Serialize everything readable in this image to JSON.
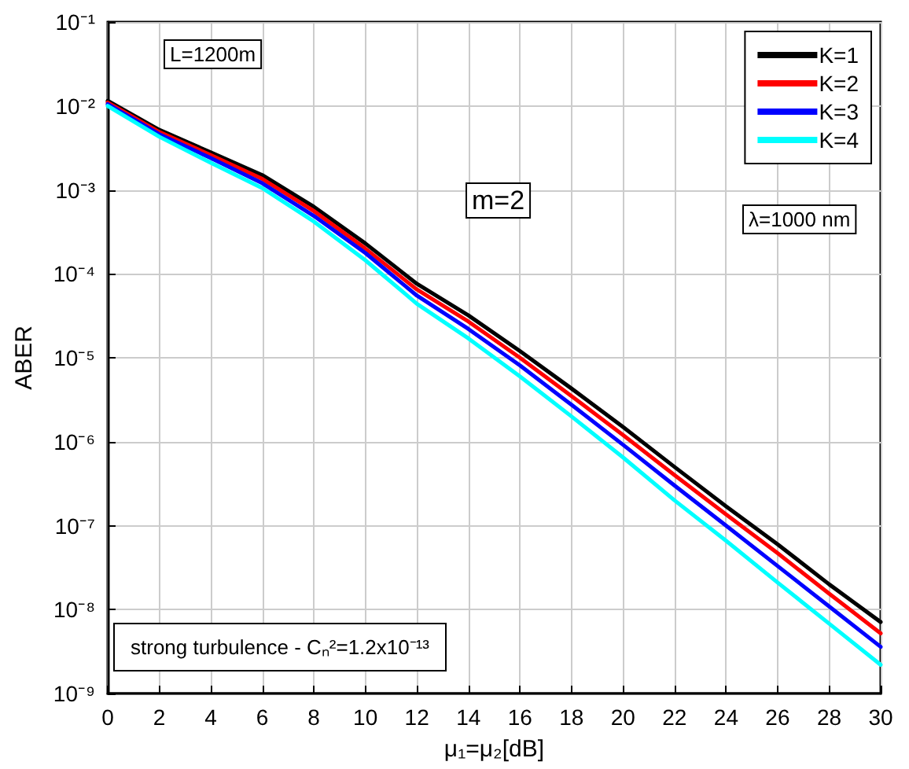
{
  "chart_data": {
    "type": "line",
    "xlabel": "μ₁=μ₂[dB]",
    "ylabel": "ABER",
    "annotations": [
      "L=1200m",
      "m=2",
      "λ=1000 nm",
      "strong turbulence - Cₙ²=1.2x10⁻¹³"
    ],
    "x": [
      0,
      2,
      4,
      6,
      8,
      10,
      12,
      14,
      16,
      18,
      20,
      22,
      24,
      26,
      28,
      30
    ],
    "series": [
      {
        "name": "K=1",
        "color": "#000000",
        "values": [
          0.0115,
          0.0052,
          0.0028,
          0.0015,
          0.00063,
          0.00023,
          7.6e-05,
          3.2e-05,
          1.2e-05,
          4.3e-06,
          1.5e-06,
          5e-07,
          1.7e-07,
          6e-08,
          2e-08,
          7.1e-09
        ]
      },
      {
        "name": "K=2",
        "color": "#ff0000",
        "values": [
          0.011,
          0.0049,
          0.0026,
          0.00135,
          0.00056,
          0.0002,
          6.5e-05,
          2.7e-05,
          1e-05,
          3.5e-06,
          1.2e-06,
          4e-07,
          1.36e-07,
          4.7e-08,
          1.55e-08,
          5.2e-09
        ]
      },
      {
        "name": "K=3",
        "color": "#0000ff",
        "values": [
          0.0105,
          0.0046,
          0.0024,
          0.0012,
          0.00049,
          0.000177,
          5.5e-05,
          2.2e-05,
          8.1e-06,
          2.75e-06,
          9.2e-07,
          3e-07,
          1e-07,
          3.3e-08,
          1.09e-08,
          3.6e-09
        ]
      },
      {
        "name": "K=4",
        "color": "#00ffff",
        "values": [
          0.01,
          0.0043,
          0.0021,
          0.00105,
          0.00042,
          0.000145,
          4.4e-05,
          1.7e-05,
          6e-06,
          2e-06,
          6.5e-07,
          2e-07,
          6.6e-08,
          2.1e-08,
          6.8e-09,
          2.2e-09
        ]
      }
    ],
    "xlim": [
      0,
      30
    ],
    "xticks": [
      0,
      2,
      4,
      6,
      8,
      10,
      12,
      14,
      16,
      18,
      20,
      22,
      24,
      26,
      28,
      30
    ],
    "ylim": [
      1e-09,
      0.1
    ],
    "yticks": [
      {
        "value": 1e-09,
        "label": "10⁻⁹"
      },
      {
        "value": 1e-08,
        "label": "10⁻⁸"
      },
      {
        "value": 1e-07,
        "label": "10⁻⁷"
      },
      {
        "value": 1e-06,
        "label": "10⁻⁶"
      },
      {
        "value": 1e-05,
        "label": "10⁻⁵"
      },
      {
        "value": 0.0001,
        "label": "10⁻⁴"
      },
      {
        "value": 0.001,
        "label": "10⁻³"
      },
      {
        "value": 0.01,
        "label": "10⁻²"
      },
      {
        "value": 0.1,
        "label": "10⁻¹"
      }
    ],
    "log": true,
    "grid": true,
    "legend": "top right",
    "marker": "none",
    "line_style": "solid"
  }
}
